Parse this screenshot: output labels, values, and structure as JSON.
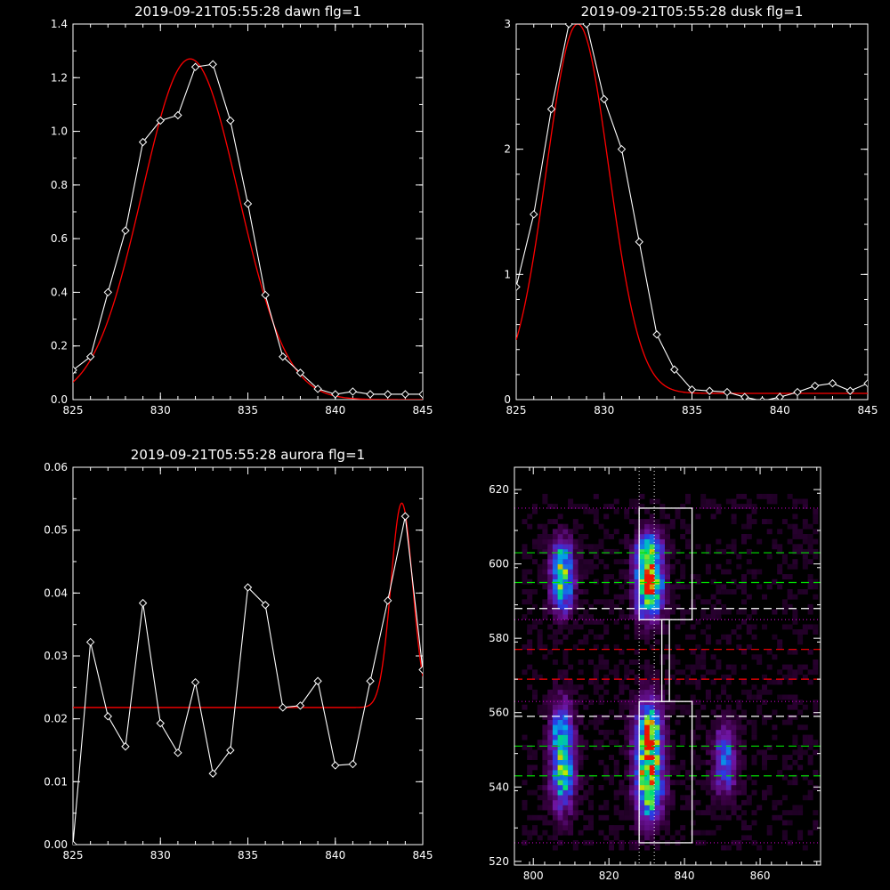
{
  "colors": {
    "background": "#000000",
    "axis": "#ffffff",
    "data_line": "#ffffff",
    "fit_line": "#ff0000",
    "green_dash": "#00e000",
    "red_dash": "#ff0000",
    "white_dash": "#ffffff",
    "magenta_dot": "#c000c0"
  },
  "chart_data": [
    {
      "id": "dawn",
      "type": "line",
      "title": "2019-09-21T05:55:28 dawn flg=1",
      "xlabel": "",
      "ylabel": "",
      "xlim": [
        825,
        845
      ],
      "ylim": [
        0,
        1.4
      ],
      "xticks": [
        825,
        830,
        835,
        840,
        845
      ],
      "yticks": [
        0.0,
        0.2,
        0.4,
        0.6,
        0.8,
        1.0,
        1.2,
        1.4
      ],
      "ytick_labels": [
        "0.0",
        "0.2",
        "0.4",
        "0.6",
        "0.8",
        "1.0",
        "1.2",
        "1.4"
      ],
      "series": [
        {
          "kind": "data",
          "markers": "diamond",
          "x": [
            825,
            826,
            827,
            828,
            829,
            830,
            831,
            832,
            833,
            834,
            835,
            836,
            837,
            838,
            839,
            840,
            841,
            842,
            843,
            844,
            845
          ],
          "y": [
            0.11,
            0.16,
            0.4,
            0.63,
            0.96,
            1.04,
            1.06,
            1.24,
            1.25,
            1.04,
            0.73,
            0.39,
            0.16,
            0.1,
            0.04,
            0.02,
            0.03,
            0.02,
            0.02,
            0.02,
            0.02
          ]
        },
        {
          "kind": "fit",
          "gaussian": {
            "amplitude": 1.27,
            "center": 831.7,
            "sigma": 2.75,
            "offset": 0.0
          }
        }
      ]
    },
    {
      "id": "dusk",
      "type": "line",
      "title": "2019-09-21T05:55:28 dusk flg=1",
      "xlabel": "",
      "ylabel": "",
      "xlim": [
        825,
        845
      ],
      "ylim": [
        0,
        3
      ],
      "xticks": [
        825,
        830,
        835,
        840,
        845
      ],
      "yticks": [
        0,
        1,
        2,
        3
      ],
      "ytick_labels": [
        "0",
        "1",
        "2",
        "3"
      ],
      "series": [
        {
          "kind": "data",
          "markers": "diamond",
          "x": [
            825,
            826,
            827,
            828,
            829,
            830,
            831,
            832,
            833,
            834,
            835,
            836,
            837,
            838,
            839,
            840,
            841,
            842,
            843,
            844,
            845
          ],
          "y": [
            0.9,
            1.48,
            2.32,
            3.0,
            3.0,
            2.4,
            2.0,
            1.26,
            0.52,
            0.24,
            0.08,
            0.07,
            0.06,
            0.02,
            -0.01,
            0.02,
            0.06,
            0.11,
            0.13,
            0.07,
            0.13
          ]
        },
        {
          "kind": "fit",
          "gaussian": {
            "amplitude": 2.95,
            "center": 828.5,
            "sigma": 1.78,
            "offset": 0.05
          }
        }
      ]
    },
    {
      "id": "aurora",
      "type": "line",
      "title": "2019-09-21T05:55:28 aurora flg=1",
      "xlabel": "",
      "ylabel": "",
      "xlim": [
        825,
        845
      ],
      "ylim": [
        0,
        0.06
      ],
      "xticks": [
        825,
        830,
        835,
        840,
        845
      ],
      "yticks": [
        0.0,
        0.01,
        0.02,
        0.03,
        0.04,
        0.05,
        0.06
      ],
      "ytick_labels": [
        "0.00",
        "0.01",
        "0.02",
        "0.03",
        "0.04",
        "0.05",
        "0.06"
      ],
      "series": [
        {
          "kind": "data",
          "markers": "diamond",
          "x": [
            825,
            826,
            827,
            828,
            829,
            830,
            831,
            832,
            833,
            834,
            835,
            836,
            837,
            838,
            839,
            840,
            841,
            842,
            843,
            844,
            845
          ],
          "y": [
            0.0,
            0.0322,
            0.0204,
            0.0156,
            0.0384,
            0.0193,
            0.0146,
            0.0258,
            0.0113,
            0.015,
            0.0409,
            0.0381,
            0.0218,
            0.0221,
            0.026,
            0.0126,
            0.0128,
            0.026,
            0.0388,
            0.0522,
            0.0278
          ]
        },
        {
          "kind": "fit",
          "gaussian": {
            "amplitude": 0.0325,
            "center": 843.8,
            "sigma": 0.62,
            "offset": 0.0218
          }
        }
      ]
    },
    {
      "id": "spectral-image",
      "type": "heatmap",
      "title": "",
      "xlabel": "",
      "ylabel": "",
      "xlim": [
        795,
        876
      ],
      "ylim": [
        519,
        626
      ],
      "xticks": [
        800,
        820,
        840,
        860
      ],
      "yticks": [
        520,
        540,
        560,
        580,
        600,
        620
      ],
      "columns": [
        {
          "x": 807,
          "width": 6,
          "y_ranges": [
            [
              586,
              606
            ],
            [
              533,
              562
            ]
          ],
          "peak": 0.72
        },
        {
          "x": 830,
          "width": 7,
          "y_ranges": [
            [
              585,
              607
            ],
            [
              531,
              562
            ]
          ],
          "peak": 1.0
        },
        {
          "x": 850,
          "width": 6,
          "y_ranges": [
            [
              537,
              556
            ]
          ],
          "peak": 0.45
        }
      ],
      "boxes": [
        {
          "x": [
            828,
            842
          ],
          "y": [
            585,
            615
          ]
        },
        {
          "x": [
            828,
            842
          ],
          "y": [
            525,
            563
          ]
        },
        {
          "x": [
            834,
            836
          ],
          "y": [
            563,
            585
          ]
        }
      ],
      "lines": {
        "green_dash": [
          603,
          595,
          551,
          543
        ],
        "white_dash": [
          588,
          559
        ],
        "red_dash": [
          577,
          569
        ],
        "magenta_dot": [
          615,
          585,
          563,
          525
        ],
        "white_dot_vertical": [
          828,
          832
        ]
      }
    }
  ]
}
